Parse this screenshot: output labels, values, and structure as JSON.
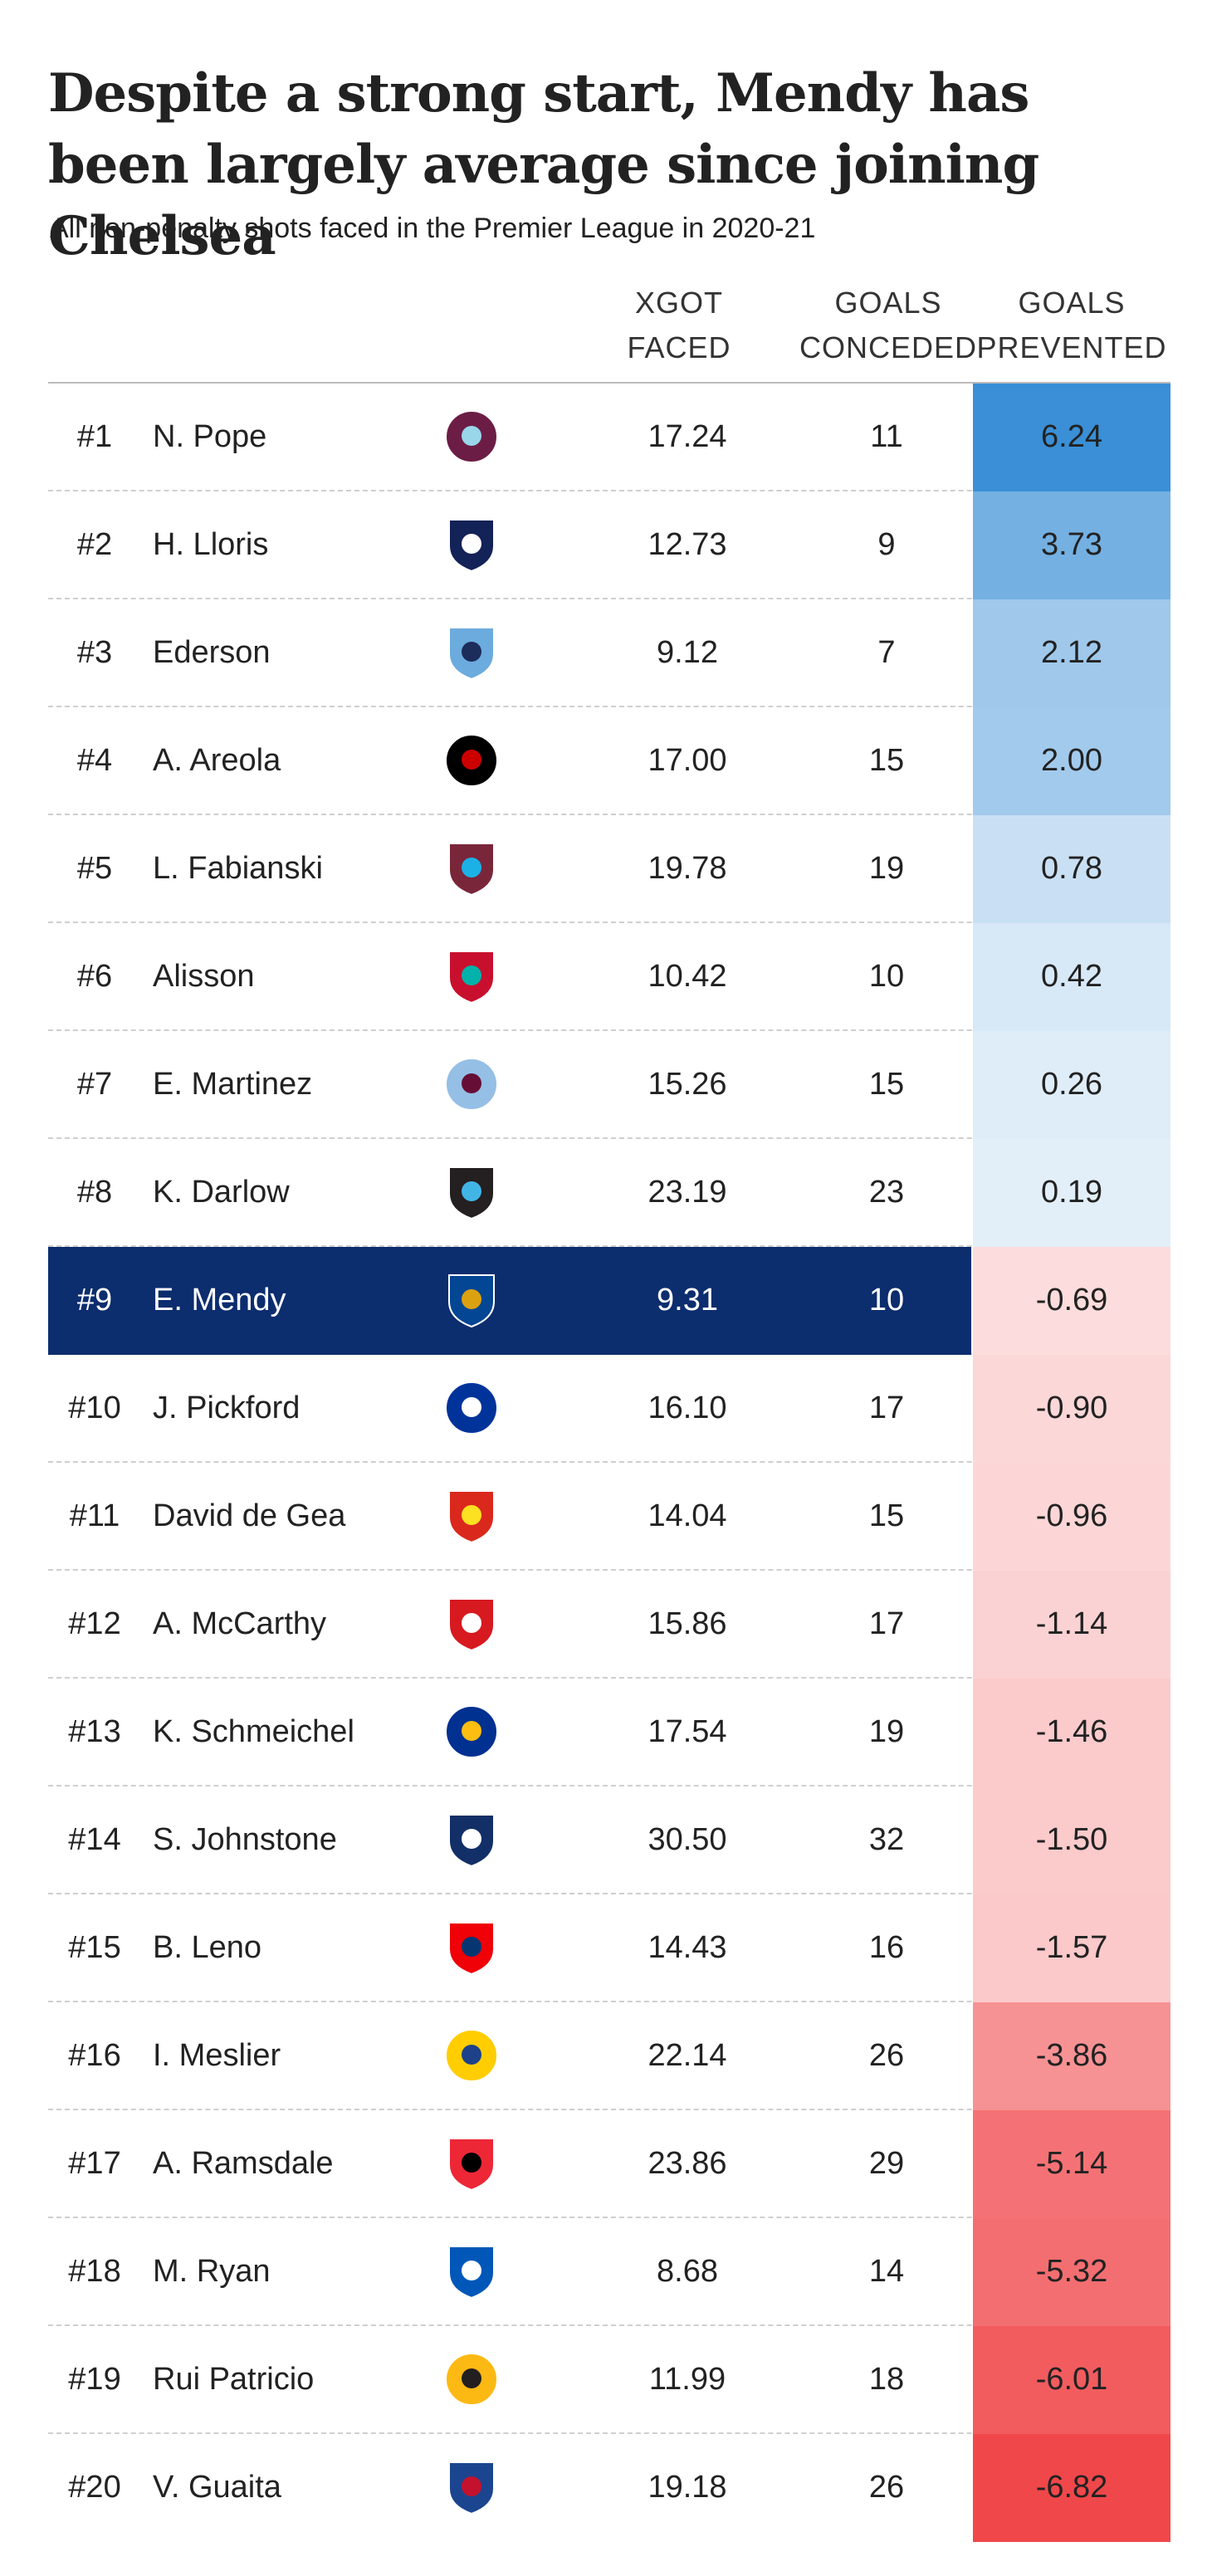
{
  "title": "Despite a strong start, Mendy has been largely average since joining Chelsea",
  "subtitle": "All non-penalty shots faced in the Premier League in 2020-21",
  "columns": {
    "xg_line1": "XGOT",
    "xg_line2": "FACED",
    "gc_line1": "GOALS",
    "gc_line2": "CONCEDED",
    "gp_line1": "GOALS",
    "gp_line2": "PREVENTED"
  },
  "highlight_color": "#0c2d6e",
  "scale_colors": {
    "positive": "#3a8fd6",
    "negative": "#f0474a"
  },
  "chart_data": {
    "type": "table",
    "headers": [
      "",
      "",
      "",
      "XGOT FACED",
      "GOALS CONCEDED",
      "GOALS PREVENTED"
    ],
    "highlighted_player": "E. Mendy",
    "rows": [
      {
        "rank": "#1",
        "name": "N. Pope",
        "club_icon": "burnley-crest-icon",
        "club_color": "#6c1d45",
        "club_accent": "#99d6ea",
        "xg": "17.24",
        "gc": "11",
        "gp": "6.24",
        "gp_value": 6.24
      },
      {
        "rank": "#2",
        "name": "H. Lloris",
        "club_icon": "tottenham-crest-icon",
        "club_color": "#132257",
        "club_accent": "#ffffff",
        "xg": "12.73",
        "gc": "9",
        "gp": "3.73",
        "gp_value": 3.73
      },
      {
        "rank": "#3",
        "name": "Ederson",
        "club_icon": "man-city-crest-icon",
        "club_color": "#6cabdd",
        "club_accent": "#1c2c5b",
        "xg": "9.12",
        "gc": "7",
        "gp": "2.12",
        "gp_value": 2.12
      },
      {
        "rank": "#4",
        "name": "A. Areola",
        "club_icon": "fulham-crest-icon",
        "club_color": "#000000",
        "club_accent": "#cc0000",
        "xg": "17.00",
        "gc": "15",
        "gp": "2.00",
        "gp_value": 2.0
      },
      {
        "rank": "#5",
        "name": "L. Fabianski",
        "club_icon": "west-ham-crest-icon",
        "club_color": "#7a263a",
        "club_accent": "#1bb1e7",
        "xg": "19.78",
        "gc": "19",
        "gp": "0.78",
        "gp_value": 0.78
      },
      {
        "rank": "#6",
        "name": "Alisson",
        "club_icon": "liverpool-crest-icon",
        "club_color": "#c8102e",
        "club_accent": "#00b2a9",
        "xg": "10.42",
        "gc": "10",
        "gp": "0.42",
        "gp_value": 0.42
      },
      {
        "rank": "#7",
        "name": "E. Martinez",
        "club_icon": "aston-villa-crest-icon",
        "club_color": "#95bfe5",
        "club_accent": "#670e36",
        "xg": "15.26",
        "gc": "15",
        "gp": "0.26",
        "gp_value": 0.26
      },
      {
        "rank": "#8",
        "name": "K. Darlow",
        "club_icon": "newcastle-crest-icon",
        "club_color": "#241f20",
        "club_accent": "#41b6e6",
        "xg": "23.19",
        "gc": "23",
        "gp": "0.19",
        "gp_value": 0.19
      },
      {
        "rank": "#9",
        "name": "E. Mendy",
        "club_icon": "chelsea-crest-icon",
        "club_color": "#034694",
        "club_accent": "#dba111",
        "xg": "9.31",
        "gc": "10",
        "gp": "-0.69",
        "gp_value": -0.69
      },
      {
        "rank": "#10",
        "name": "J. Pickford",
        "club_icon": "everton-crest-icon",
        "club_color": "#003399",
        "club_accent": "#ffffff",
        "xg": "16.10",
        "gc": "17",
        "gp": "-0.90",
        "gp_value": -0.9
      },
      {
        "rank": "#11",
        "name": "David de Gea",
        "club_icon": "man-united-crest-icon",
        "club_color": "#da291c",
        "club_accent": "#fbe122",
        "xg": "14.04",
        "gc": "15",
        "gp": "-0.96",
        "gp_value": -0.96
      },
      {
        "rank": "#12",
        "name": "A. McCarthy",
        "club_icon": "southampton-crest-icon",
        "club_color": "#d71920",
        "club_accent": "#ffffff",
        "xg": "15.86",
        "gc": "17",
        "gp": "-1.14",
        "gp_value": -1.14
      },
      {
        "rank": "#13",
        "name": "K. Schmeichel",
        "club_icon": "leicester-crest-icon",
        "club_color": "#003090",
        "club_accent": "#fdbe11",
        "xg": "17.54",
        "gc": "19",
        "gp": "-1.46",
        "gp_value": -1.46
      },
      {
        "rank": "#14",
        "name": "S. Johnstone",
        "club_icon": "west-brom-crest-icon",
        "club_color": "#122f67",
        "club_accent": "#ffffff",
        "xg": "30.50",
        "gc": "32",
        "gp": "-1.50",
        "gp_value": -1.5
      },
      {
        "rank": "#15",
        "name": "B. Leno",
        "club_icon": "arsenal-crest-icon",
        "club_color": "#ef0107",
        "club_accent": "#063672",
        "xg": "14.43",
        "gc": "16",
        "gp": "-1.57",
        "gp_value": -1.57
      },
      {
        "rank": "#16",
        "name": "I. Meslier",
        "club_icon": "leeds-crest-icon",
        "club_color": "#ffcd00",
        "club_accent": "#1d428a",
        "xg": "22.14",
        "gc": "26",
        "gp": "-3.86",
        "gp_value": -3.86
      },
      {
        "rank": "#17",
        "name": "A. Ramsdale",
        "club_icon": "sheffield-united-crest-icon",
        "club_color": "#ee2737",
        "club_accent": "#000000",
        "xg": "23.86",
        "gc": "29",
        "gp": "-5.14",
        "gp_value": -5.14
      },
      {
        "rank": "#18",
        "name": "M. Ryan",
        "club_icon": "brighton-crest-icon",
        "club_color": "#0057b8",
        "club_accent": "#ffffff",
        "xg": "8.68",
        "gc": "14",
        "gp": "-5.32",
        "gp_value": -5.32
      },
      {
        "rank": "#19",
        "name": "Rui Patricio",
        "club_icon": "wolves-crest-icon",
        "club_color": "#fdb913",
        "club_accent": "#231f20",
        "xg": "11.99",
        "gc": "18",
        "gp": "-6.01",
        "gp_value": -6.01
      },
      {
        "rank": "#20",
        "name": "V. Guaita",
        "club_icon": "crystal-palace-crest-icon",
        "club_color": "#1b458f",
        "club_accent": "#c4122e",
        "xg": "19.18",
        "gc": "26",
        "gp": "-6.82",
        "gp_value": -6.82
      }
    ]
  }
}
